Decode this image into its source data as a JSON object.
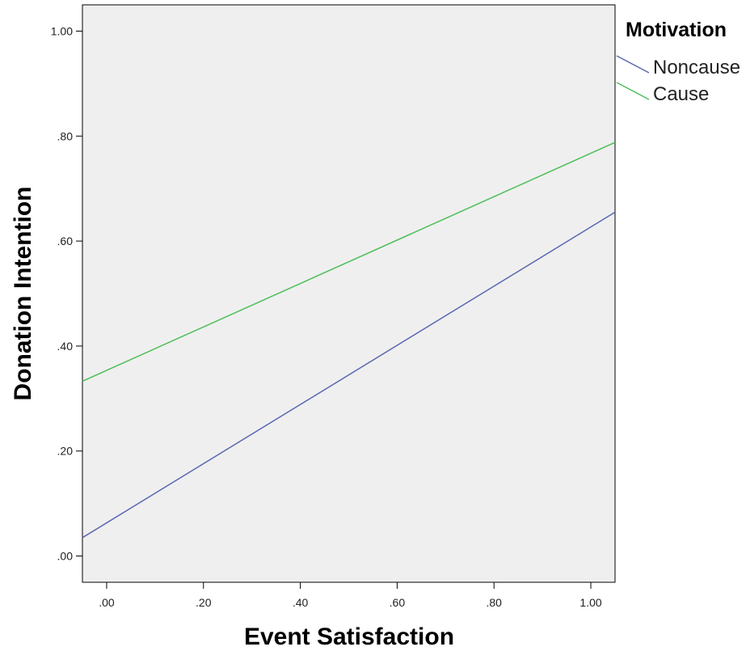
{
  "chart_data": {
    "type": "line",
    "xlabel": "Event Satisfaction",
    "ylabel": "Donation Intention",
    "xlim": [
      -0.05,
      1.05
    ],
    "ylim": [
      -0.05,
      1.05
    ],
    "x_ticks": [
      ".00",
      ".20",
      ".40",
      ".60",
      ".80",
      "1.00"
    ],
    "x_tick_values": [
      0.0,
      0.2,
      0.4,
      0.6,
      0.8,
      1.0
    ],
    "y_ticks": [
      ".00",
      ".20",
      ".40",
      ".60",
      ".80",
      "1.00"
    ],
    "y_tick_values": [
      0.0,
      0.2,
      0.4,
      0.6,
      0.8,
      1.0
    ],
    "grid": false,
    "legend": {
      "title": "Motivation",
      "position": "right"
    },
    "series": [
      {
        "name": "Noncause",
        "color": "#5b67b1",
        "x": [
          -0.05,
          1.05
        ],
        "y": [
          0.035,
          0.655
        ]
      },
      {
        "name": "Cause",
        "color": "#4cbf58",
        "x": [
          -0.05,
          1.05
        ],
        "y": [
          0.333,
          0.788
        ]
      }
    ],
    "plot_background": "#efefef"
  }
}
